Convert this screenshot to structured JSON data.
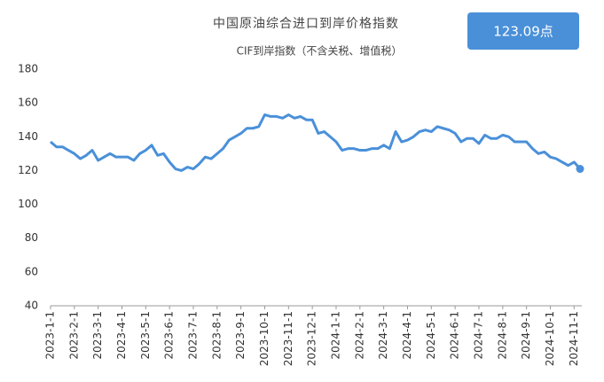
{
  "chart_data": {
    "type": "line",
    "title": "中国原油综合进口到岸价格指数",
    "subtitle": "CIF到岸指数（不含关税、增值税）",
    "annotation": "123.09点",
    "categories": [
      "2023-1-1",
      null,
      null,
      null,
      "2023-2-1",
      null,
      null,
      null,
      "2023-3-1",
      null,
      null,
      null,
      "2023-4-1",
      null,
      null,
      null,
      "2023-5-1",
      null,
      null,
      null,
      "2023-6-1",
      null,
      null,
      null,
      "2023-7-1",
      null,
      null,
      null,
      "2023-8-1",
      null,
      null,
      null,
      "2023-9-1",
      null,
      null,
      null,
      "2023-10-1",
      null,
      null,
      null,
      "2023-11-1",
      null,
      null,
      null,
      "2023-12-1",
      null,
      null,
      null,
      "2024-1-1",
      null,
      null,
      null,
      "2024-2-1",
      null,
      null,
      null,
      "2024-3-1",
      null,
      null,
      null,
      "2024-4-1",
      null,
      null,
      null,
      "2024-5-1",
      null,
      null,
      null,
      "2024-6-1",
      null,
      null,
      null,
      "2024-7-1",
      null,
      null,
      null,
      "2024-8-1",
      null,
      null,
      null,
      "2024-9-1",
      null,
      null,
      null,
      "2024-10-1",
      null,
      null,
      null,
      "2024-11-1",
      null
    ],
    "values": [
      137,
      134,
      134,
      132,
      130,
      127,
      129,
      132,
      126,
      128,
      130,
      128,
      128,
      128,
      126,
      130,
      132,
      135,
      129,
      130,
      125,
      121,
      120,
      122,
      121,
      124,
      128,
      127,
      130,
      133,
      138,
      140,
      142,
      145,
      145,
      146,
      153,
      152,
      152,
      151,
      153,
      151,
      152,
      150,
      150,
      142,
      143,
      140,
      137,
      132,
      133,
      133,
      132,
      132,
      133,
      133,
      135,
      133,
      143,
      137,
      138,
      140,
      143,
      144,
      143,
      146,
      145,
      144,
      142,
      137,
      139,
      139,
      136,
      141,
      139,
      139,
      141,
      140,
      137,
      137,
      137,
      133,
      130,
      131,
      128,
      127,
      125,
      123,
      125,
      121
    ],
    "color": "#4a90d9",
    "ylim": [
      40,
      180
    ],
    "yticks": [
      40,
      60,
      80,
      100,
      120,
      140,
      160,
      180
    ],
    "grid": false
  }
}
